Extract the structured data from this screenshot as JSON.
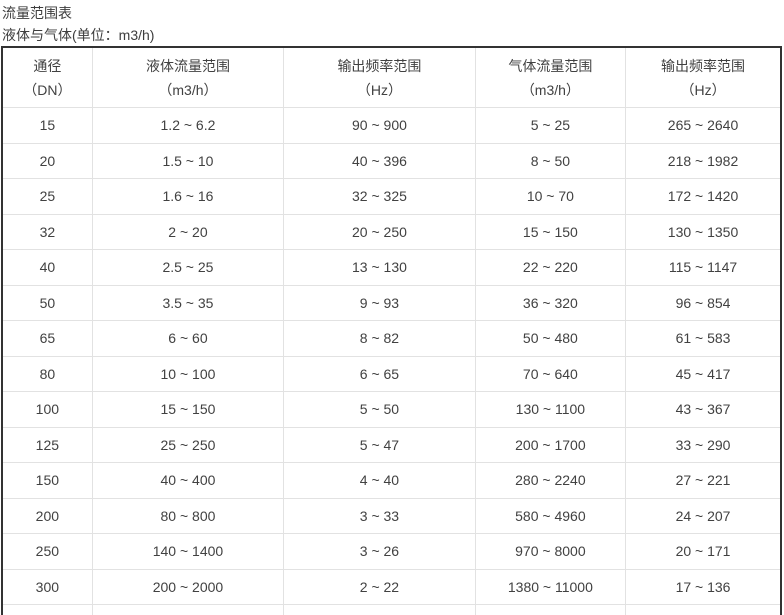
{
  "page": {
    "title": "流量范围表",
    "subtitle": "液体与气体(单位：m3/h)"
  },
  "colors": {
    "outer_border": "#333333",
    "inner_border": "#e2e2e2",
    "text": "#414141",
    "background": "#ffffff"
  },
  "table": {
    "columns": [
      {
        "label": "通径",
        "unit": "（DN）"
      },
      {
        "label": "液体流量范围",
        "unit": "（m3/h）"
      },
      {
        "label": "输出频率范围",
        "unit": "（Hz）"
      },
      {
        "label": "气体流量范围",
        "unit": "（m3/h）"
      },
      {
        "label": "输出频率范围",
        "unit": "（Hz）"
      }
    ],
    "rows": [
      [
        "15",
        "1.2 ~ 6.2",
        "90 ~ 900",
        "5 ~ 25",
        "265 ~ 2640"
      ],
      [
        "20",
        "1.5 ~ 10",
        "40 ~ 396",
        "8 ~ 50",
        "218 ~ 1982"
      ],
      [
        "25",
        "1.6 ~ 16",
        "32 ~ 325",
        "10 ~ 70",
        "172 ~ 1420"
      ],
      [
        "32",
        "2 ~ 20",
        "20 ~ 250",
        "15 ~ 150",
        "130 ~ 1350"
      ],
      [
        "40",
        "2.5 ~ 25",
        "13 ~ 130",
        "22 ~ 220",
        "115 ~ 1147"
      ],
      [
        "50",
        "3.5 ~ 35",
        "9 ~ 93",
        "36 ~ 320",
        "96 ~ 854"
      ],
      [
        "65",
        "6 ~ 60",
        "8 ~ 82",
        "50 ~ 480",
        "61 ~ 583"
      ],
      [
        "80",
        "10 ~ 100",
        "6 ~ 65",
        "70 ~ 640",
        "45 ~ 417"
      ],
      [
        "100",
        "15 ~ 150",
        "5 ~ 50",
        "130 ~ 1100",
        "43 ~ 367"
      ],
      [
        "125",
        "25 ~ 250",
        "5 ~ 47",
        "200 ~ 1700",
        "33 ~ 290"
      ],
      [
        "150",
        "40 ~ 400",
        "4 ~ 40",
        "280 ~ 2240",
        "27 ~ 221"
      ],
      [
        "200",
        "80 ~ 800",
        "3 ~ 33",
        "580 ~ 4960",
        "24 ~ 207"
      ],
      [
        "250",
        "140 ~ 1400",
        "3 ~ 26",
        "970 ~ 8000",
        "20 ~ 171"
      ],
      [
        "300",
        "200 ~ 2000",
        "2 ~ 22",
        "1380 ~ 11000",
        "17 ~ 136"
      ]
    ]
  }
}
